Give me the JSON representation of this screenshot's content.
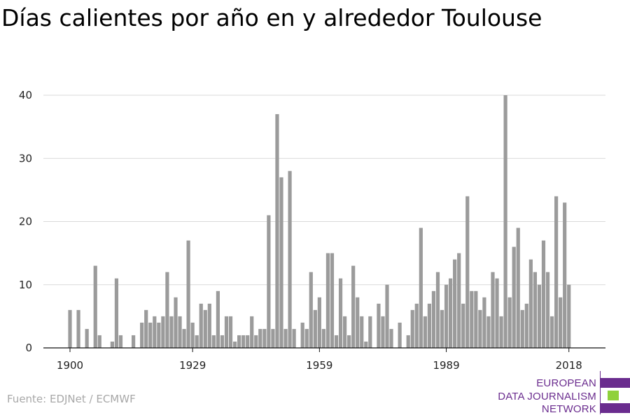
{
  "chart_data": {
    "type": "bar",
    "title": "Días calientes por año en y alrededor Toulouse",
    "xlabel": "",
    "ylabel": "",
    "x_ticks": [
      "1900",
      "1929",
      "1959",
      "1989",
      "2018"
    ],
    "y_ticks": [
      "0",
      "10",
      "20",
      "30",
      "40"
    ],
    "ylim": [
      0,
      40
    ],
    "xlim": [
      1894,
      2024
    ],
    "grid": true,
    "bar_color": "#9b9b9b",
    "years": [
      1900,
      1901,
      1902,
      1903,
      1904,
      1905,
      1906,
      1907,
      1908,
      1909,
      1910,
      1911,
      1912,
      1913,
      1914,
      1915,
      1916,
      1917,
      1918,
      1919,
      1920,
      1921,
      1922,
      1923,
      1924,
      1925,
      1926,
      1927,
      1928,
      1929,
      1930,
      1931,
      1932,
      1933,
      1934,
      1935,
      1936,
      1937,
      1938,
      1939,
      1940,
      1941,
      1942,
      1943,
      1944,
      1945,
      1946,
      1947,
      1948,
      1949,
      1950,
      1951,
      1952,
      1953,
      1954,
      1955,
      1956,
      1957,
      1958,
      1959,
      1960,
      1961,
      1962,
      1963,
      1964,
      1965,
      1966,
      1967,
      1968,
      1969,
      1970,
      1971,
      1972,
      1973,
      1974,
      1975,
      1976,
      1977,
      1978,
      1979,
      1980,
      1981,
      1982,
      1983,
      1984,
      1985,
      1986,
      1987,
      1988,
      1989,
      1990,
      1991,
      1992,
      1993,
      1994,
      1995,
      1996,
      1997,
      1998,
      1999,
      2000,
      2001,
      2002,
      2003,
      2004,
      2005,
      2006,
      2007,
      2008,
      2009,
      2010,
      2011,
      2012,
      2013,
      2014,
      2015,
      2016,
      2017,
      2018
    ],
    "values": [
      6,
      0,
      6,
      0,
      3,
      0,
      13,
      2,
      0,
      0,
      1,
      11,
      2,
      0,
      0,
      2,
      0,
      4,
      6,
      4,
      5,
      4,
      5,
      12,
      5,
      8,
      5,
      3,
      17,
      4,
      2,
      7,
      6,
      7,
      2,
      9,
      2,
      5,
      5,
      1,
      2,
      2,
      2,
      5,
      2,
      3,
      3,
      21,
      3,
      37,
      27,
      3,
      28,
      3,
      0,
      4,
      3,
      12,
      6,
      8,
      3,
      15,
      15,
      2,
      11,
      5,
      2,
      13,
      8,
      5,
      1,
      5,
      0,
      7,
      5,
      10,
      3,
      0,
      4,
      0,
      2,
      6,
      7,
      19,
      5,
      7,
      9,
      12,
      6,
      10,
      11,
      14,
      15,
      7,
      24,
      9,
      9,
      6,
      8,
      5,
      12,
      11,
      5,
      40,
      8,
      16,
      19,
      6,
      7,
      14,
      12,
      10,
      17,
      12,
      5,
      24,
      8,
      23,
      10
    ]
  },
  "source": "Fuente: EDJNet / ECMWF",
  "logo": {
    "line1": "EUROPEAN",
    "line2": "DATA JOURNALISM",
    "line3": "NETWORK",
    "purple": "#6a2c8e",
    "green": "#8fd13b"
  }
}
